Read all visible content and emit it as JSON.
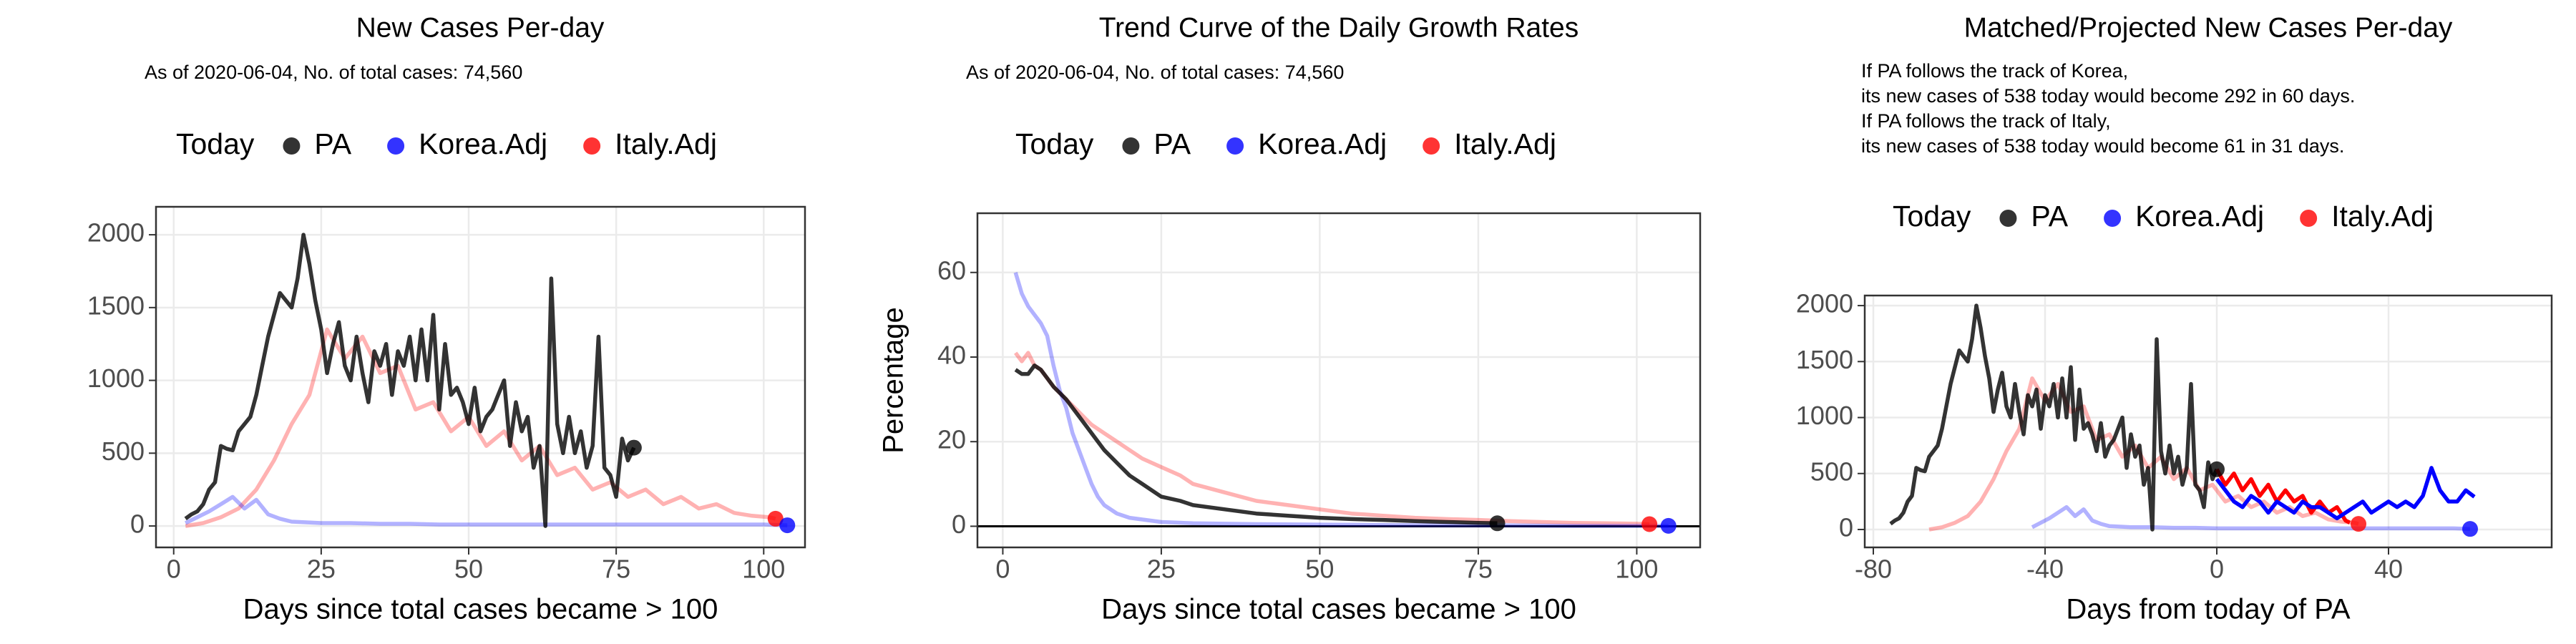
{
  "chart_data": [
    {
      "type": "line",
      "title": "New Cases Per-day",
      "subtitle": "As of 2020-06-04, No. of total cases: 74,560",
      "legend_title": "Today",
      "xlabel": "Days since total cases became > 100",
      "grid": true,
      "xlim": [
        -3,
        107
      ],
      "xticks": [
        0,
        25,
        50,
        75,
        100
      ],
      "ylim": [
        -147,
        2192
      ],
      "yticks": [
        0,
        500,
        1000,
        1500,
        2000
      ],
      "series": [
        {
          "name": "PA",
          "color": "#000000",
          "opacity": 0.8,
          "x": [
            2,
            3,
            4,
            5,
            6,
            7,
            8,
            9,
            10,
            11,
            12,
            13,
            14,
            15,
            16,
            17,
            18,
            19,
            20,
            21,
            22,
            23,
            24,
            25,
            26,
            27,
            28,
            29,
            30,
            31,
            32,
            33,
            34,
            35,
            36,
            37,
            38,
            39,
            40,
            41,
            42,
            43,
            44,
            45,
            46,
            47,
            48,
            49,
            50,
            51,
            52,
            53,
            54,
            55,
            56,
            57,
            58,
            59,
            60,
            61,
            62,
            63,
            64,
            65,
            66,
            67,
            68,
            69,
            70,
            71,
            72,
            73,
            74,
            75,
            76,
            77,
            78
          ],
          "values": [
            50,
            80,
            100,
            150,
            250,
            300,
            550,
            530,
            520,
            650,
            700,
            750,
            900,
            1100,
            1300,
            1450,
            1600,
            1550,
            1500,
            1700,
            2000,
            1800,
            1550,
            1350,
            1050,
            1250,
            1400,
            1100,
            1000,
            1300,
            1050,
            850,
            1200,
            1100,
            1250,
            900,
            1200,
            1100,
            1300,
            1000,
            1350,
            1000,
            1450,
            800,
            1250,
            900,
            950,
            850,
            700,
            950,
            650,
            750,
            800,
            900,
            1000,
            550,
            850,
            650,
            750,
            400,
            550,
            0,
            1700,
            700,
            500,
            750,
            500,
            650,
            400,
            550,
            1300,
            400,
            350,
            200,
            600,
            450,
            538
          ]
        },
        {
          "name": "Korea.Adj",
          "color": "#0000ff",
          "opacity": 0.3,
          "x": [
            2,
            4,
            6,
            8,
            10,
            12,
            14,
            16,
            18,
            20,
            25,
            30,
            35,
            40,
            45,
            50,
            55,
            60,
            65,
            70,
            75,
            80,
            85,
            90,
            95,
            100,
            104
          ],
          "values": [
            20,
            60,
            100,
            150,
            200,
            120,
            180,
            80,
            50,
            30,
            20,
            20,
            15,
            15,
            10,
            10,
            10,
            10,
            10,
            10,
            10,
            10,
            10,
            10,
            10,
            10,
            5
          ]
        },
        {
          "name": "Italy.Adj",
          "color": "#ff0000",
          "opacity": 0.3,
          "x": [
            2,
            5,
            8,
            11,
            14,
            17,
            20,
            23,
            26,
            29,
            32,
            35,
            38,
            41,
            44,
            47,
            50,
            53,
            56,
            59,
            62,
            65,
            68,
            71,
            74,
            77,
            80,
            83,
            86,
            89,
            92,
            95,
            98,
            101,
            102
          ],
          "values": [
            0,
            20,
            60,
            120,
            250,
            450,
            700,
            900,
            1350,
            1150,
            1300,
            1050,
            1100,
            800,
            850,
            650,
            750,
            550,
            650,
            450,
            550,
            350,
            400,
            250,
            300,
            200,
            250,
            150,
            200,
            120,
            150,
            90,
            70,
            60,
            50
          ]
        }
      ]
    },
    {
      "type": "line",
      "title": "Trend Curve of the Daily Growth Rates",
      "subtitle": "As of 2020-06-04, No. of total cases: 74,560",
      "legend_title": "Today",
      "xlabel": "Days since total cases became > 100",
      "ylabel": "Percentage",
      "grid": true,
      "xlim": [
        -4,
        110
      ],
      "xticks": [
        0,
        25,
        50,
        75,
        100
      ],
      "ylim": [
        -5,
        74
      ],
      "yticks": [
        0,
        20,
        40,
        60
      ],
      "hline": 0,
      "series": [
        {
          "name": "PA",
          "color": "#000000",
          "opacity": 0.8,
          "x": [
            2,
            3,
            4,
            5,
            6,
            7,
            8,
            10,
            12,
            14,
            16,
            18,
            20,
            22,
            25,
            28,
            30,
            35,
            40,
            45,
            50,
            55,
            60,
            65,
            70,
            75,
            78
          ],
          "values": [
            37,
            36,
            36,
            38,
            37,
            35,
            33,
            30,
            26,
            22,
            18,
            15,
            12,
            10,
            7,
            6,
            5,
            4,
            3,
            2.5,
            2,
            1.7,
            1.5,
            1.2,
            1,
            0.8,
            0.7
          ]
        },
        {
          "name": "Korea.Adj",
          "color": "#0000ff",
          "opacity": 0.3,
          "x": [
            2,
            3,
            4,
            5,
            6,
            7,
            8,
            9,
            10,
            11,
            12,
            13,
            14,
            15,
            16,
            18,
            20,
            25,
            30,
            40,
            50,
            60,
            70,
            80,
            90,
            100,
            105
          ],
          "values": [
            60,
            55,
            52,
            50,
            48,
            45,
            38,
            32,
            28,
            22,
            18,
            14,
            10,
            7,
            5,
            3,
            2,
            1,
            0.7,
            0.5,
            0.4,
            0.3,
            0.2,
            0.2,
            0.1,
            0.1,
            0.1
          ]
        },
        {
          "name": "Italy.Adj",
          "color": "#ff0000",
          "opacity": 0.3,
          "x": [
            2,
            3,
            4,
            5,
            6,
            8,
            10,
            12,
            14,
            16,
            18,
            20,
            22,
            25,
            28,
            30,
            35,
            40,
            45,
            50,
            55,
            60,
            65,
            70,
            75,
            80,
            85,
            90,
            95,
            100,
            102
          ],
          "values": [
            41,
            39,
            41,
            38,
            37,
            33,
            30,
            27,
            24,
            22,
            20,
            18,
            16,
            14,
            12,
            10,
            8,
            6,
            5,
            4,
            3,
            2.5,
            2,
            1.7,
            1.5,
            1.2,
            1,
            0.8,
            0.7,
            0.6,
            0.5
          ]
        }
      ]
    },
    {
      "type": "line",
      "title": "Matched/Projected New Cases Per-day",
      "subtitle": [
        "If PA follows the track of Korea,",
        "its new cases of 538 today would become 292 in 60 days.",
        "If PA follows the track of Italy,",
        "its new cases of 538 today would become 61 in 31 days."
      ],
      "legend_title": "Today",
      "xlabel": "Days from today of PA",
      "grid": true,
      "xlim": [
        -82,
        78
      ],
      "xticks": [
        -80,
        -40,
        0,
        40
      ],
      "ylim": [
        -160,
        2090
      ],
      "yticks": [
        0,
        500,
        1000,
        1500,
        2000
      ],
      "series": [
        {
          "name": "PA",
          "color": "#000000",
          "opacity": 0.8,
          "x": [
            -76,
            -75,
            -74,
            -73,
            -72,
            -71,
            -70,
            -69,
            -68,
            -67,
            -66,
            -65,
            -64,
            -63,
            -62,
            -61,
            -60,
            -59,
            -58,
            -57,
            -56,
            -55,
            -54,
            -53,
            -52,
            -51,
            -50,
            -49,
            -48,
            -47,
            -46,
            -45,
            -44,
            -43,
            -42,
            -41,
            -40,
            -39,
            -38,
            -37,
            -36,
            -35,
            -34,
            -33,
            -32,
            -31,
            -30,
            -29,
            -28,
            -27,
            -26,
            -25,
            -24,
            -23,
            -22,
            -21,
            -20,
            -19,
            -18,
            -17,
            -16,
            -15,
            -14,
            -13,
            -12,
            -11,
            -10,
            -9,
            -8,
            -7,
            -6,
            -5,
            -4,
            -3,
            -2,
            -1,
            0
          ],
          "values": [
            50,
            80,
            100,
            150,
            250,
            300,
            550,
            530,
            520,
            650,
            700,
            750,
            900,
            1100,
            1300,
            1450,
            1600,
            1550,
            1500,
            1700,
            2000,
            1800,
            1550,
            1350,
            1050,
            1250,
            1400,
            1100,
            1000,
            1300,
            1050,
            850,
            1200,
            1100,
            1250,
            900,
            1200,
            1100,
            1300,
            1000,
            1350,
            1000,
            1450,
            800,
            1250,
            900,
            950,
            850,
            700,
            950,
            650,
            750,
            800,
            900,
            1000,
            550,
            850,
            650,
            750,
            400,
            550,
            0,
            1700,
            700,
            500,
            750,
            500,
            650,
            400,
            550,
            1300,
            400,
            350,
            200,
            600,
            450,
            538
          ]
        },
        {
          "name": "Korea.Adj",
          "color": "#0000ff",
          "opacity": 0.3,
          "x": [
            -43,
            -41,
            -39,
            -37,
            -35,
            -33,
            -31,
            -29,
            -27,
            -25,
            -20,
            -15,
            -10,
            -5,
            0,
            5,
            10,
            15,
            20,
            25,
            30,
            35,
            40,
            45,
            50,
            55,
            59
          ],
          "values": [
            20,
            60,
            100,
            150,
            200,
            120,
            180,
            80,
            50,
            30,
            20,
            20,
            15,
            15,
            10,
            10,
            10,
            10,
            10,
            10,
            10,
            10,
            10,
            10,
            10,
            10,
            5
          ],
          "projection_color": "#0000ff",
          "projection_x": [
            0,
            2,
            4,
            6,
            8,
            10,
            12,
            14,
            16,
            18,
            20,
            22,
            24,
            26,
            28,
            30,
            32,
            34,
            36,
            38,
            40,
            42,
            44,
            46,
            48,
            50,
            52,
            54,
            56,
            58,
            60
          ],
          "projection_values": [
            450,
            350,
            250,
            200,
            300,
            250,
            150,
            250,
            200,
            150,
            250,
            200,
            200,
            150,
            100,
            150,
            200,
            250,
            150,
            200,
            250,
            200,
            250,
            200,
            300,
            550,
            350,
            250,
            250,
            350,
            292
          ]
        },
        {
          "name": "Italy.Adj",
          "color": "#ff0000",
          "opacity": 0.3,
          "x": [
            -67,
            -64,
            -61,
            -58,
            -55,
            -52,
            -49,
            -46,
            -43,
            -40,
            -37,
            -34,
            -31,
            -28,
            -25,
            -22,
            -19,
            -16,
            -13,
            -10,
            -7,
            -4,
            -1,
            2,
            5,
            8,
            11,
            14,
            17,
            20,
            23,
            26,
            29,
            32,
            33
          ],
          "values": [
            0,
            20,
            60,
            120,
            250,
            450,
            700,
            900,
            1350,
            1150,
            1300,
            1050,
            1100,
            800,
            850,
            650,
            750,
            550,
            650,
            450,
            550,
            350,
            400,
            250,
            300,
            200,
            250,
            150,
            200,
            120,
            150,
            90,
            70,
            60,
            50
          ],
          "projection_color": "#ff0000",
          "projection_x": [
            0,
            2,
            4,
            6,
            8,
            10,
            12,
            14,
            16,
            18,
            20,
            22,
            24,
            26,
            28,
            30,
            31
          ],
          "projection_values": [
            538,
            400,
            500,
            350,
            450,
            300,
            400,
            250,
            350,
            250,
            300,
            150,
            250,
            150,
            200,
            80,
            61
          ]
        }
      ]
    }
  ]
}
